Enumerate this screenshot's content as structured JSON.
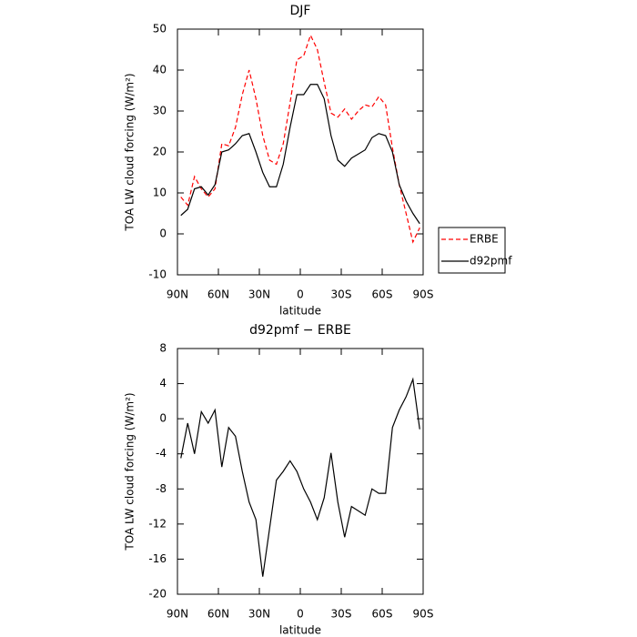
{
  "chart_data": [
    {
      "type": "line",
      "title": "DJF",
      "xlabel": "latitude",
      "ylabel": "TOA LW cloud forcing (W/m²)",
      "x": [
        87.5,
        82.5,
        77.5,
        72.5,
        67.5,
        62.5,
        57.5,
        52.5,
        47.5,
        42.5,
        37.5,
        32.5,
        27.5,
        22.5,
        17.5,
        12.5,
        7.5,
        2.5,
        -2.5,
        -7.5,
        -12.5,
        -17.5,
        -22.5,
        -27.5,
        -32.5,
        -37.5,
        -42.5,
        -47.5,
        -52.5,
        -57.5,
        -62.5,
        -67.5,
        -72.5,
        -77.5,
        -82.5,
        -87.5
      ],
      "series": [
        {
          "name": "ERBE",
          "color": "#ff0000",
          "dash": true,
          "values": [
            9,
            7,
            14,
            11,
            9,
            11,
            22,
            21.5,
            26,
            34,
            40,
            33,
            24,
            18,
            17,
            22,
            32,
            42.5,
            43.5,
            48.5,
            45,
            37,
            29.5,
            28.5,
            30.5,
            28,
            30,
            31.5,
            31,
            33.5,
            31.5,
            21,
            12,
            5,
            -2,
            1.5
          ]
        },
        {
          "name": "d92pmf",
          "color": "#000000",
          "dash": false,
          "values": [
            4.5,
            6,
            11,
            11.5,
            9.5,
            12,
            20,
            20.5,
            22,
            24,
            24.5,
            20,
            15,
            11.5,
            11.5,
            17,
            26,
            34,
            34,
            36.5,
            36.5,
            33,
            24,
            18,
            16.5,
            18.5,
            19.5,
            20.5,
            23.5,
            24.5,
            24,
            20,
            12,
            8,
            5,
            2.5
          ]
        }
      ],
      "xlim": [
        90,
        -90
      ],
      "xticks": [
        {
          "value": 90,
          "label": "90N"
        },
        {
          "value": 60,
          "label": "60N"
        },
        {
          "value": 30,
          "label": "30N"
        },
        0,
        {
          "value": -30,
          "label": "30S"
        },
        {
          "value": -60,
          "label": "60S"
        },
        {
          "value": -90,
          "label": "90S"
        }
      ],
      "ylim": [
        -10,
        50
      ],
      "yticks": [
        -10,
        0,
        10,
        20,
        30,
        40,
        50
      ],
      "legend": "right"
    },
    {
      "type": "line",
      "title": "d92pmf − ERBE",
      "xlabel": "latitude",
      "ylabel": "TOA LW cloud forcing (W/m²)",
      "x": [
        87.5,
        82.5,
        77.5,
        72.5,
        67.5,
        62.5,
        57.5,
        52.5,
        47.5,
        42.5,
        37.5,
        32.5,
        27.5,
        22.5,
        17.5,
        12.5,
        7.5,
        2.5,
        -2.5,
        -7.5,
        -12.5,
        -17.5,
        -22.5,
        -27.5,
        -32.5,
        -37.5,
        -42.5,
        -47.5,
        -52.5,
        -57.5,
        -62.5,
        -67.5,
        -72.5,
        -77.5,
        -82.5,
        -87.5
      ],
      "series": [
        {
          "color": "#000000",
          "dash": false,
          "values": [
            -4.5,
            -0.5,
            -4,
            0.8,
            -0.5,
            1,
            -5.5,
            -1,
            -2,
            -6,
            -9.5,
            -11.5,
            -18,
            -12.5,
            -7,
            -6,
            -4.8,
            -6,
            -8,
            -9.5,
            -11.5,
            -9,
            -3.9,
            -9.5,
            -13.5,
            -10,
            -10.5,
            -11,
            -8,
            -8.5,
            -8.5,
            -1,
            1,
            2.5,
            4.5,
            -1.2
          ]
        }
      ],
      "xlim": [
        90,
        -90
      ],
      "xticks": [
        {
          "value": 90,
          "label": "90N"
        },
        {
          "value": 60,
          "label": "60N"
        },
        {
          "value": 30,
          "label": "30N"
        },
        0,
        {
          "value": -30,
          "label": "30S"
        },
        {
          "value": -60,
          "label": "60S"
        },
        {
          "value": -90,
          "label": "90S"
        }
      ],
      "ylim": [
        -20,
        8
      ],
      "yticks": [
        -20,
        -16,
        -12,
        -8,
        -4,
        0,
        4,
        8
      ]
    }
  ]
}
